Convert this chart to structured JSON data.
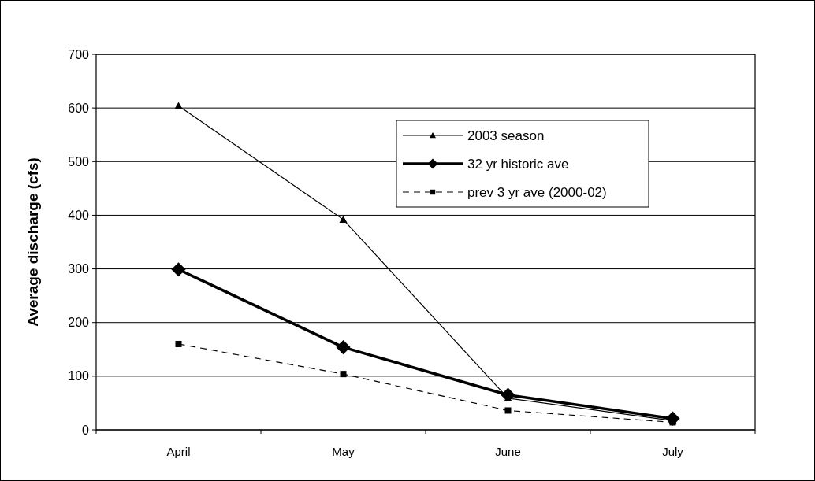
{
  "chart_data": {
    "type": "line",
    "ylabel": "Average discharge (cfs)",
    "categories": [
      "April",
      "May",
      "June",
      "July"
    ],
    "series": [
      {
        "name": "2003 season",
        "color": "#000000",
        "values": [
          604,
          392,
          59,
          17
        ],
        "marker": "triangle",
        "line_style": "solid"
      },
      {
        "name": "32 yr historic ave",
        "color": "#000000",
        "values": [
          299,
          154,
          65,
          21
        ],
        "marker": "diamond",
        "line_style": "solid"
      },
      {
        "name": "prev 3 yr ave (2000-02)",
        "color": "#000000",
        "values": [
          160,
          104,
          36,
          14
        ],
        "marker": "square",
        "line_style": "dashed"
      }
    ],
    "ylim": [
      0,
      700
    ],
    "yticks": [
      0,
      100,
      200,
      300,
      400,
      500,
      600,
      700
    ],
    "grid": "y",
    "legend": "top right"
  }
}
